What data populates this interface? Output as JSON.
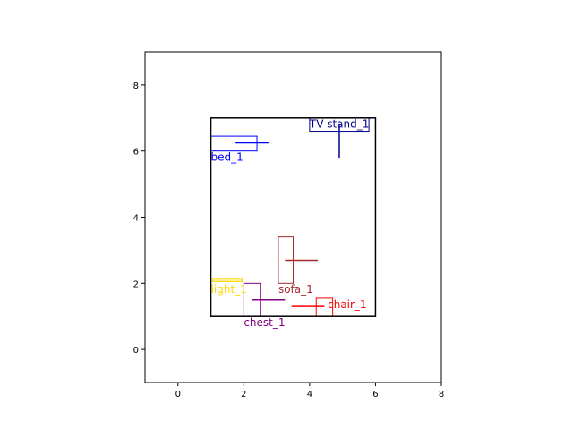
{
  "chart_data": {
    "type": "diagram",
    "xlim": [
      -1,
      8
    ],
    "ylim": [
      -1,
      9
    ],
    "xticks": [
      "0",
      "2",
      "4",
      "6",
      "8"
    ],
    "yticks": [
      "0",
      "2",
      "4",
      "6",
      "8"
    ],
    "room": {
      "x": [
        1,
        6
      ],
      "y": [
        1,
        7
      ],
      "color": "#000000"
    },
    "objects": [
      {
        "name": "TV stand_1",
        "color": "#00008b",
        "rect": {
          "x": 4.0,
          "y": 6.6,
          "w": 1.8,
          "h": 0.4
        },
        "line": {
          "x1": 4.9,
          "y1": 5.8,
          "x2": 4.9,
          "y2": 6.8
        },
        "label_at": [
          4.0,
          6.95
        ]
      },
      {
        "name": "bed_1",
        "color": "#0000ff",
        "rect": {
          "x": 1.0,
          "y": 6.0,
          "w": 1.4,
          "h": 0.45
        },
        "line": {
          "x1": 1.75,
          "y1": 6.25,
          "x2": 2.75,
          "y2": 6.25
        },
        "label_at": [
          1.0,
          5.95
        ]
      },
      {
        "name": "sofa_1",
        "color": "#a52a2a",
        "rect": {
          "x": 3.05,
          "y": 2.0,
          "w": 0.45,
          "h": 1.4
        },
        "line": {
          "x1": 3.25,
          "y1": 2.7,
          "x2": 4.25,
          "y2": 2.7
        },
        "label_at": [
          3.05,
          1.95
        ]
      },
      {
        "name": "light_1",
        "color": "#ffd700",
        "rect": {
          "x": 1.05,
          "y": 2.05,
          "w": 0.9,
          "h": 0.1
        },
        "line": {
          "x1": 1.05,
          "y1": 2.1,
          "x2": 1.95,
          "y2": 2.1
        },
        "label_at": [
          1.0,
          1.95
        ]
      },
      {
        "name": "chest_1",
        "color": "#800080",
        "rect": {
          "x": 2.0,
          "y": 1.0,
          "w": 0.5,
          "h": 1.0
        },
        "line": {
          "x1": 2.25,
          "y1": 1.5,
          "x2": 3.25,
          "y2": 1.5
        },
        "label_at": [
          2.0,
          0.95
        ]
      },
      {
        "name": "chair_1",
        "color": "#ff0000",
        "rect": {
          "x": 4.2,
          "y": 1.0,
          "w": 0.5,
          "h": 0.55
        },
        "line": {
          "x1": 3.45,
          "y1": 1.3,
          "x2": 4.45,
          "y2": 1.3
        },
        "label_at": [
          4.55,
          1.5
        ]
      }
    ]
  }
}
